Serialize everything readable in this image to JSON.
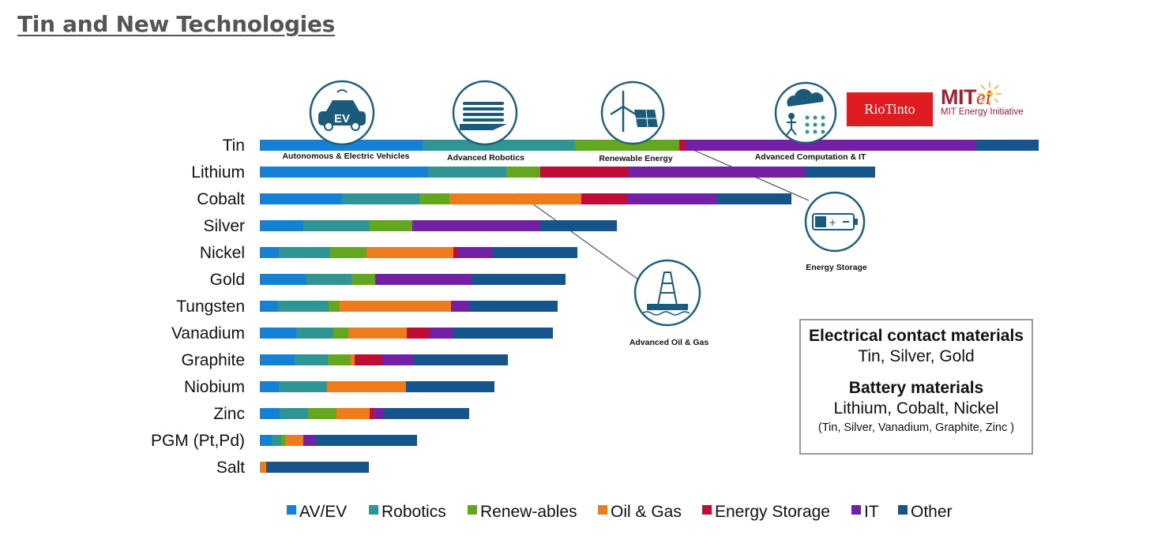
{
  "page": {
    "title": "Tin and New Technologies"
  },
  "logos": {
    "riotinto": "RioTinto",
    "mit_prefix": "MIT",
    "mit_suffix": "ei",
    "mit_sub": "MIT Energy Initiative"
  },
  "icons": [
    {
      "name": "ev-car-icon",
      "label": "Autonomous & Electric Vehicles",
      "badge": "EV"
    },
    {
      "name": "robot-hand-icon",
      "label": "Advanced Robotics"
    },
    {
      "name": "wind-solar-icon",
      "label": "Renewable Energy"
    },
    {
      "name": "cloud-network-icon",
      "label": "Advanced Computation & IT"
    },
    {
      "name": "battery-icon",
      "label": "Energy Storage"
    },
    {
      "name": "oil-rig-icon",
      "label": "Advanced Oil & Gas"
    }
  ],
  "note_box": {
    "heading1": "Electrical contact materials",
    "text1": "Tin, Silver, Gold",
    "heading2": "Battery materials",
    "text2": "Lithium, Cobalt, Nickel",
    "text3": "(Tin, Silver, Vanadium, Graphite, Zinc )"
  },
  "chart_data": {
    "type": "bar",
    "orientation": "horizontal",
    "stacked": true,
    "title": "",
    "xlabel": "",
    "ylabel": "",
    "axes_visible": false,
    "grid": false,
    "legend_position": "bottom",
    "categories": [
      "Tin",
      "Lithium",
      "Cobalt",
      "Silver",
      "Nickel",
      "Gold",
      "Tungsten",
      "Vanadium",
      "Graphite",
      "Niobium",
      "Zinc",
      "PGM (Pt,Pd)",
      "Salt"
    ],
    "series": [
      {
        "name": "AV/EV",
        "color": "#1581d6",
        "values": [
          206,
          213,
          104,
          55,
          24,
          59,
          22,
          46,
          44,
          24,
          25,
          15,
          0
        ]
      },
      {
        "name": "Robotics",
        "color": "#2e9594",
        "values": [
          193,
          99,
          98,
          84,
          65,
          57,
          65,
          47,
          42,
          61,
          36,
          12,
          0
        ]
      },
      {
        "name": "Renew-ables",
        "color": "#63a71e",
        "values": [
          132,
          43,
          38,
          54,
          46,
          30,
          14,
          19,
          29,
          0,
          36,
          5,
          0
        ]
      },
      {
        "name": "Oil & Gas",
        "color": "#ee7c1c",
        "values": [
          0,
          0,
          167,
          0,
          110,
          0,
          141,
          74,
          5,
          100,
          42,
          23,
          8
        ]
      },
      {
        "name": "Energy Storage",
        "color": "#c00d35",
        "values": [
          8,
          111,
          58,
          0,
          5,
          0,
          0,
          29,
          34,
          0,
          5,
          0,
          0
        ]
      },
      {
        "name": "IT",
        "color": "#7320a6",
        "values": [
          368,
          225,
          114,
          161,
          44,
          122,
          23,
          29,
          40,
          0,
          13,
          16,
          0
        ]
      },
      {
        "name": "Other",
        "color": "#16558c",
        "values": [
          79,
          88,
          94,
          98,
          108,
          119,
          112,
          127,
          120,
          112,
          108,
          128,
          130
        ]
      }
    ]
  }
}
